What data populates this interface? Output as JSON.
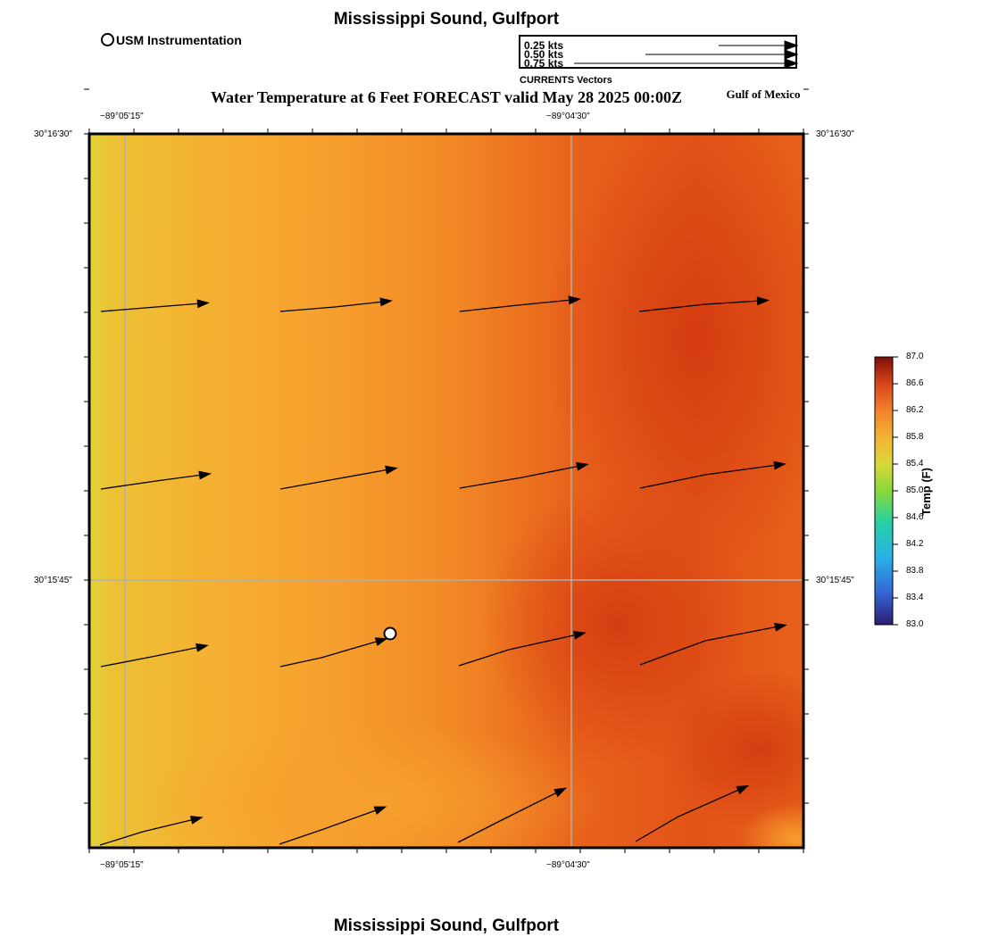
{
  "header": {
    "title": "Mississippi Sound, Gulfport",
    "subtitle": "Water Temperature at 6 Feet FORECAST valid May 28 2025 00:00Z",
    "region": "Gulf of Mexico"
  },
  "legend": {
    "station_label": "USM Instrumentation",
    "vector_caption": "CURRENTS Vectors",
    "vector_scale": [
      "0.25 kts",
      "0.50 kts",
      "0.75 kts"
    ]
  },
  "axes": {
    "lon_top": [
      "−89°05'15\"",
      "−89°04'30\""
    ],
    "lon_bottom": [
      "−89°05'15\"",
      "−89°04'30\""
    ],
    "lat_left": [
      "30°16'30\"",
      "30°15'45\""
    ],
    "lat_right": [
      "30°16'30\"",
      "30°15'45\""
    ]
  },
  "colorbar": {
    "title": "Temp (F)",
    "min": 83.0,
    "max": 87.0,
    "ticks": [
      "87.0",
      "86.6",
      "86.2",
      "85.8",
      "85.4",
      "85.0",
      "84.6",
      "84.2",
      "83.8",
      "83.4",
      "83.0"
    ]
  },
  "footer": {
    "title": "Mississippi Sound, Gulfport"
  },
  "colors": {
    "frame": "#000000",
    "grid": "#b0b0b0",
    "station": "#ffffff"
  }
}
